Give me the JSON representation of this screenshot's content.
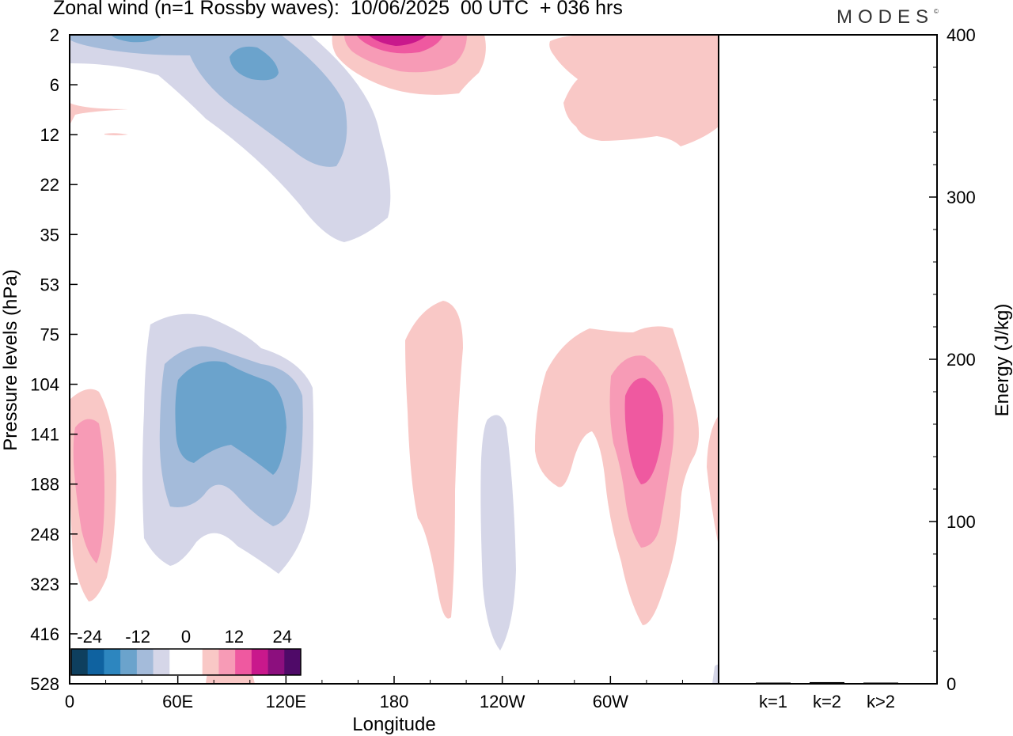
{
  "title": "Zonal wind (n=1 Rossby waves):  10/06/2025  00 UTC  + 036 hrs",
  "logo": "MODES",
  "logo_mark": "©",
  "colors": {
    "neg": [
      "#0e3f5e",
      "#0f62a0",
      "#2d86bf",
      "#6ba3cc",
      "#a4bbda",
      "#d5d6e8"
    ],
    "neutral": "#ffffff",
    "pos": [
      "#f9c8c6",
      "#f79bb6",
      "#ef59a0",
      "#c9188c",
      "#8c0f7e",
      "#4f0a68"
    ]
  },
  "colorbar": {
    "labels": [
      "-24",
      "-12",
      "0",
      "12",
      "24"
    ]
  },
  "chart_data": [
    {
      "type": "heatmap",
      "title": "Zonal wind (n=1 Rossby waves):  10/06/2025  00 UTC  + 036 hrs",
      "xlabel": "Longitude",
      "ylabel": "Pressure levels (hPa)",
      "x_ticks": [
        "0",
        "60E",
        "120E",
        "180",
        "120W",
        "60W"
      ],
      "y_ticks": [
        "2",
        "6",
        "12",
        "22",
        "35",
        "53",
        "75",
        "104",
        "141",
        "188",
        "248",
        "323",
        "416",
        "528"
      ],
      "contour_levels": [
        -24,
        -20,
        -16,
        -12,
        -8,
        -4,
        4,
        8,
        12,
        16,
        20,
        24
      ],
      "features": [
        {
          "sign": "negative",
          "lon": [
            60,
            125
          ],
          "level": [
            75,
            323
          ],
          "peak": -16
        },
        {
          "sign": "negative",
          "lon": [
            0,
            170
          ],
          "level": [
            2,
            35
          ],
          "peak": -16
        },
        {
          "sign": "negative",
          "lon": [
            218,
            232
          ],
          "level": [
            141,
            416
          ],
          "peak": -4
        },
        {
          "sign": "positive",
          "lon": [
            0,
            25
          ],
          "level": [
            104,
            323
          ],
          "peak": 12
        },
        {
          "sign": "positive",
          "lon": [
            178,
            205
          ],
          "level": [
            53,
            416
          ],
          "peak": 4
        },
        {
          "sign": "positive",
          "lon": [
            250,
            330
          ],
          "level": [
            75,
            416
          ],
          "peak": 16
        },
        {
          "sign": "positive",
          "lon": [
            140,
            225
          ],
          "level": [
            2,
            6
          ],
          "peak": 20
        },
        {
          "sign": "positive",
          "lon": [
            255,
            360
          ],
          "level": [
            2,
            12
          ],
          "peak": 4
        }
      ]
    },
    {
      "type": "bar",
      "categories": [
        "k=1",
        "k=2",
        "k>2"
      ],
      "values": [
        0.5,
        1,
        0.5
      ],
      "ylabel": "Energy (J/kg)",
      "ylim": [
        0,
        400
      ],
      "y_ticks": [
        "0",
        "100",
        "200",
        "300",
        "400"
      ]
    }
  ]
}
